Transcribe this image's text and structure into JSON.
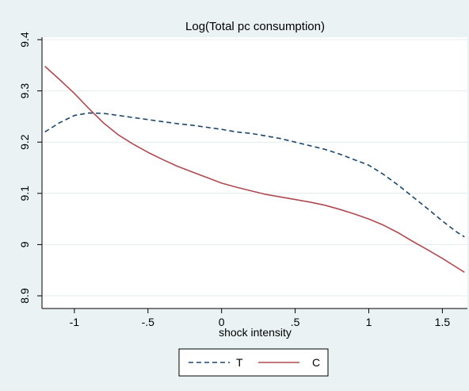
{
  "chart_data": {
    "type": "line",
    "title": "Log(Total pc consumption)",
    "xlabel": "shock intensity",
    "ylabel": "",
    "xlim": [
      -1.22,
      1.67
    ],
    "ylim": [
      8.9,
      9.4
    ],
    "x_ticks": [
      -1,
      -0.5,
      0,
      0.5,
      1,
      1.5
    ],
    "x_tick_labels": [
      "-1",
      "-.5",
      "0",
      ".5",
      "1",
      "1.5"
    ],
    "y_ticks": [
      8.9,
      9.0,
      9.1,
      9.2,
      9.3,
      9.4
    ],
    "y_tick_labels": [
      "8.9",
      "9",
      "9.1",
      "9.2",
      "9.3",
      "9.4"
    ],
    "grid": "horizontal",
    "legend_position": "bottom",
    "colors": {
      "plot_bg": "#ffffff",
      "outer_bg": "#eaf2f3",
      "grid": "#e4ecee",
      "T": "#1a476f",
      "C": "#b04a50"
    },
    "series": [
      {
        "name": "T",
        "style": "dashed",
        "x": [
          -1.2,
          -1.1,
          -1.0,
          -0.9,
          -0.8,
          -0.7,
          -0.6,
          -0.5,
          -0.4,
          -0.3,
          -0.2,
          -0.1,
          0.0,
          0.1,
          0.2,
          0.3,
          0.4,
          0.5,
          0.6,
          0.7,
          0.8,
          0.9,
          1.0,
          1.1,
          1.2,
          1.3,
          1.4,
          1.5,
          1.6,
          1.65
        ],
        "y": [
          9.22,
          9.238,
          9.252,
          9.257,
          9.256,
          9.252,
          9.248,
          9.244,
          9.24,
          9.236,
          9.233,
          9.229,
          9.225,
          9.22,
          9.217,
          9.212,
          9.207,
          9.2,
          9.193,
          9.186,
          9.177,
          9.166,
          9.155,
          9.137,
          9.116,
          9.093,
          9.07,
          9.046,
          9.024,
          9.015
        ]
      },
      {
        "name": "C",
        "style": "solid",
        "x": [
          -1.2,
          -1.1,
          -1.0,
          -0.9,
          -0.8,
          -0.7,
          -0.6,
          -0.5,
          -0.4,
          -0.3,
          -0.2,
          -0.1,
          0.0,
          0.1,
          0.2,
          0.3,
          0.4,
          0.5,
          0.6,
          0.7,
          0.8,
          0.9,
          1.0,
          1.1,
          1.2,
          1.3,
          1.4,
          1.5,
          1.6,
          1.65
        ],
        "y": [
          9.348,
          9.322,
          9.295,
          9.265,
          9.237,
          9.214,
          9.196,
          9.18,
          9.166,
          9.153,
          9.142,
          9.131,
          9.12,
          9.112,
          9.105,
          9.098,
          9.093,
          9.088,
          9.083,
          9.077,
          9.069,
          9.06,
          9.05,
          9.038,
          9.023,
          9.006,
          8.99,
          8.973,
          8.955,
          8.946
        ]
      }
    ]
  }
}
